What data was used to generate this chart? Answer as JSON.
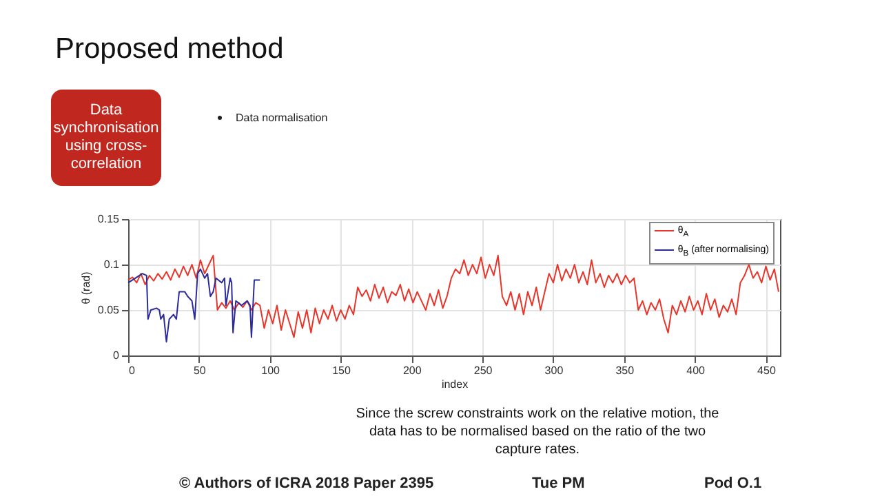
{
  "chart_data": {
    "type": "line",
    "title": "Proposed method",
    "xlabel": "index",
    "ylabel": "θ (rad)",
    "xlim": [
      0,
      460
    ],
    "xticks": [
      0,
      50,
      100,
      150,
      200,
      250,
      300,
      350,
      400,
      450
    ],
    "ylim": [
      0,
      0.15
    ],
    "yticks": [
      0,
      0.05,
      0.1,
      0.15
    ],
    "grid": true,
    "legend": "top right",
    "annotations": [
      "Data synchronisation using cross-correlation",
      "Data normalisation",
      "Since the screw constraints work on the relative motion, the data has to be normalised based on the ratio of the two capture rates.",
      "© Authors of ICRA 2018 Paper 2395",
      "Tue PM",
      "Pod O.1"
    ],
    "series": [
      {
        "name": "θ$_{A}$",
        "color": "#e8352a",
        "x": [
          0,
          3,
          6,
          9,
          12,
          15,
          18,
          21,
          24,
          27,
          30,
          33,
          36,
          39,
          42,
          45,
          48,
          51,
          54,
          57,
          60,
          63,
          66,
          69,
          72,
          75,
          78,
          81,
          84,
          87,
          90,
          93,
          96,
          99,
          102,
          105,
          108,
          111,
          114,
          117,
          120,
          123,
          126,
          129,
          132,
          135,
          138,
          141,
          144,
          147,
          150,
          153,
          156,
          159,
          162,
          165,
          168,
          171,
          174,
          177,
          180,
          183,
          186,
          189,
          192,
          195,
          198,
          201,
          204,
          207,
          210,
          213,
          216,
          219,
          222,
          225,
          228,
          231,
          234,
          237,
          240,
          243,
          246,
          249,
          252,
          255,
          258,
          261,
          264,
          267,
          270,
          273,
          276,
          279,
          282,
          285,
          288,
          291,
          294,
          297,
          300,
          303,
          306,
          309,
          312,
          315,
          318,
          321,
          324,
          327,
          330,
          333,
          336,
          339,
          342,
          345,
          348,
          351,
          354,
          357,
          360,
          363,
          366,
          369,
          372,
          375,
          378,
          381,
          384,
          387,
          390,
          393,
          396,
          399,
          402,
          405,
          408,
          411,
          414,
          417,
          420,
          423,
          426,
          429,
          432,
          435,
          438,
          441,
          444,
          447,
          450,
          453,
          456,
          459
        ],
        "values": [
          0.083,
          0.086,
          0.08,
          0.09,
          0.078,
          0.088,
          0.082,
          0.09,
          0.084,
          0.092,
          0.083,
          0.095,
          0.086,
          0.098,
          0.088,
          0.1,
          0.085,
          0.105,
          0.09,
          0.1,
          0.11,
          0.05,
          0.058,
          0.052,
          0.06,
          0.05,
          0.058,
          0.053,
          0.06,
          0.05,
          0.058,
          0.055,
          0.03,
          0.05,
          0.035,
          0.055,
          0.028,
          0.05,
          0.035,
          0.02,
          0.048,
          0.03,
          0.05,
          0.025,
          0.052,
          0.035,
          0.05,
          0.04,
          0.055,
          0.038,
          0.05,
          0.04,
          0.055,
          0.045,
          0.075,
          0.065,
          0.072,
          0.06,
          0.078,
          0.063,
          0.075,
          0.058,
          0.07,
          0.066,
          0.078,
          0.06,
          0.073,
          0.058,
          0.07,
          0.06,
          0.05,
          0.068,
          0.055,
          0.072,
          0.052,
          0.065,
          0.085,
          0.095,
          0.09,
          0.105,
          0.088,
          0.1,
          0.09,
          0.108,
          0.085,
          0.1,
          0.088,
          0.11,
          0.065,
          0.055,
          0.07,
          0.05,
          0.068,
          0.045,
          0.07,
          0.055,
          0.075,
          0.05,
          0.07,
          0.09,
          0.08,
          0.1,
          0.082,
          0.095,
          0.085,
          0.1,
          0.08,
          0.092,
          0.078,
          0.105,
          0.08,
          0.09,
          0.075,
          0.088,
          0.08,
          0.09,
          0.078,
          0.088,
          0.08,
          0.085,
          0.05,
          0.06,
          0.045,
          0.058,
          0.05,
          0.062,
          0.04,
          0.025,
          0.055,
          0.045,
          0.06,
          0.048,
          0.065,
          0.05,
          0.06,
          0.045,
          0.068,
          0.05,
          0.062,
          0.042,
          0.055,
          0.048,
          0.062,
          0.045,
          0.08,
          0.088,
          0.1,
          0.085,
          0.092,
          0.08,
          0.098,
          0.083,
          0.095,
          0.07
        ]
      },
      {
        "name": "θ$_{B}$ (after normalising)",
        "color": "#2b2b9a",
        "x": [
          0,
          5,
          10,
          13,
          14,
          16,
          20,
          22,
          23,
          25,
          27,
          29,
          32,
          34,
          36,
          40,
          42,
          45,
          47,
          49,
          51,
          54,
          56,
          58,
          60,
          62,
          66,
          68,
          69,
          72,
          73,
          74,
          76,
          80,
          84,
          86,
          87,
          89,
          93
        ],
        "values": [
          0.08,
          0.085,
          0.09,
          0.088,
          0.04,
          0.05,
          0.052,
          0.05,
          0.04,
          0.045,
          0.015,
          0.04,
          0.045,
          0.04,
          0.07,
          0.07,
          0.065,
          0.06,
          0.04,
          0.09,
          0.095,
          0.085,
          0.09,
          0.065,
          0.07,
          0.085,
          0.08,
          0.085,
          0.055,
          0.085,
          0.08,
          0.025,
          0.06,
          0.055,
          0.06,
          0.055,
          0.02,
          0.083,
          0.083
        ]
      }
    ]
  }
}
